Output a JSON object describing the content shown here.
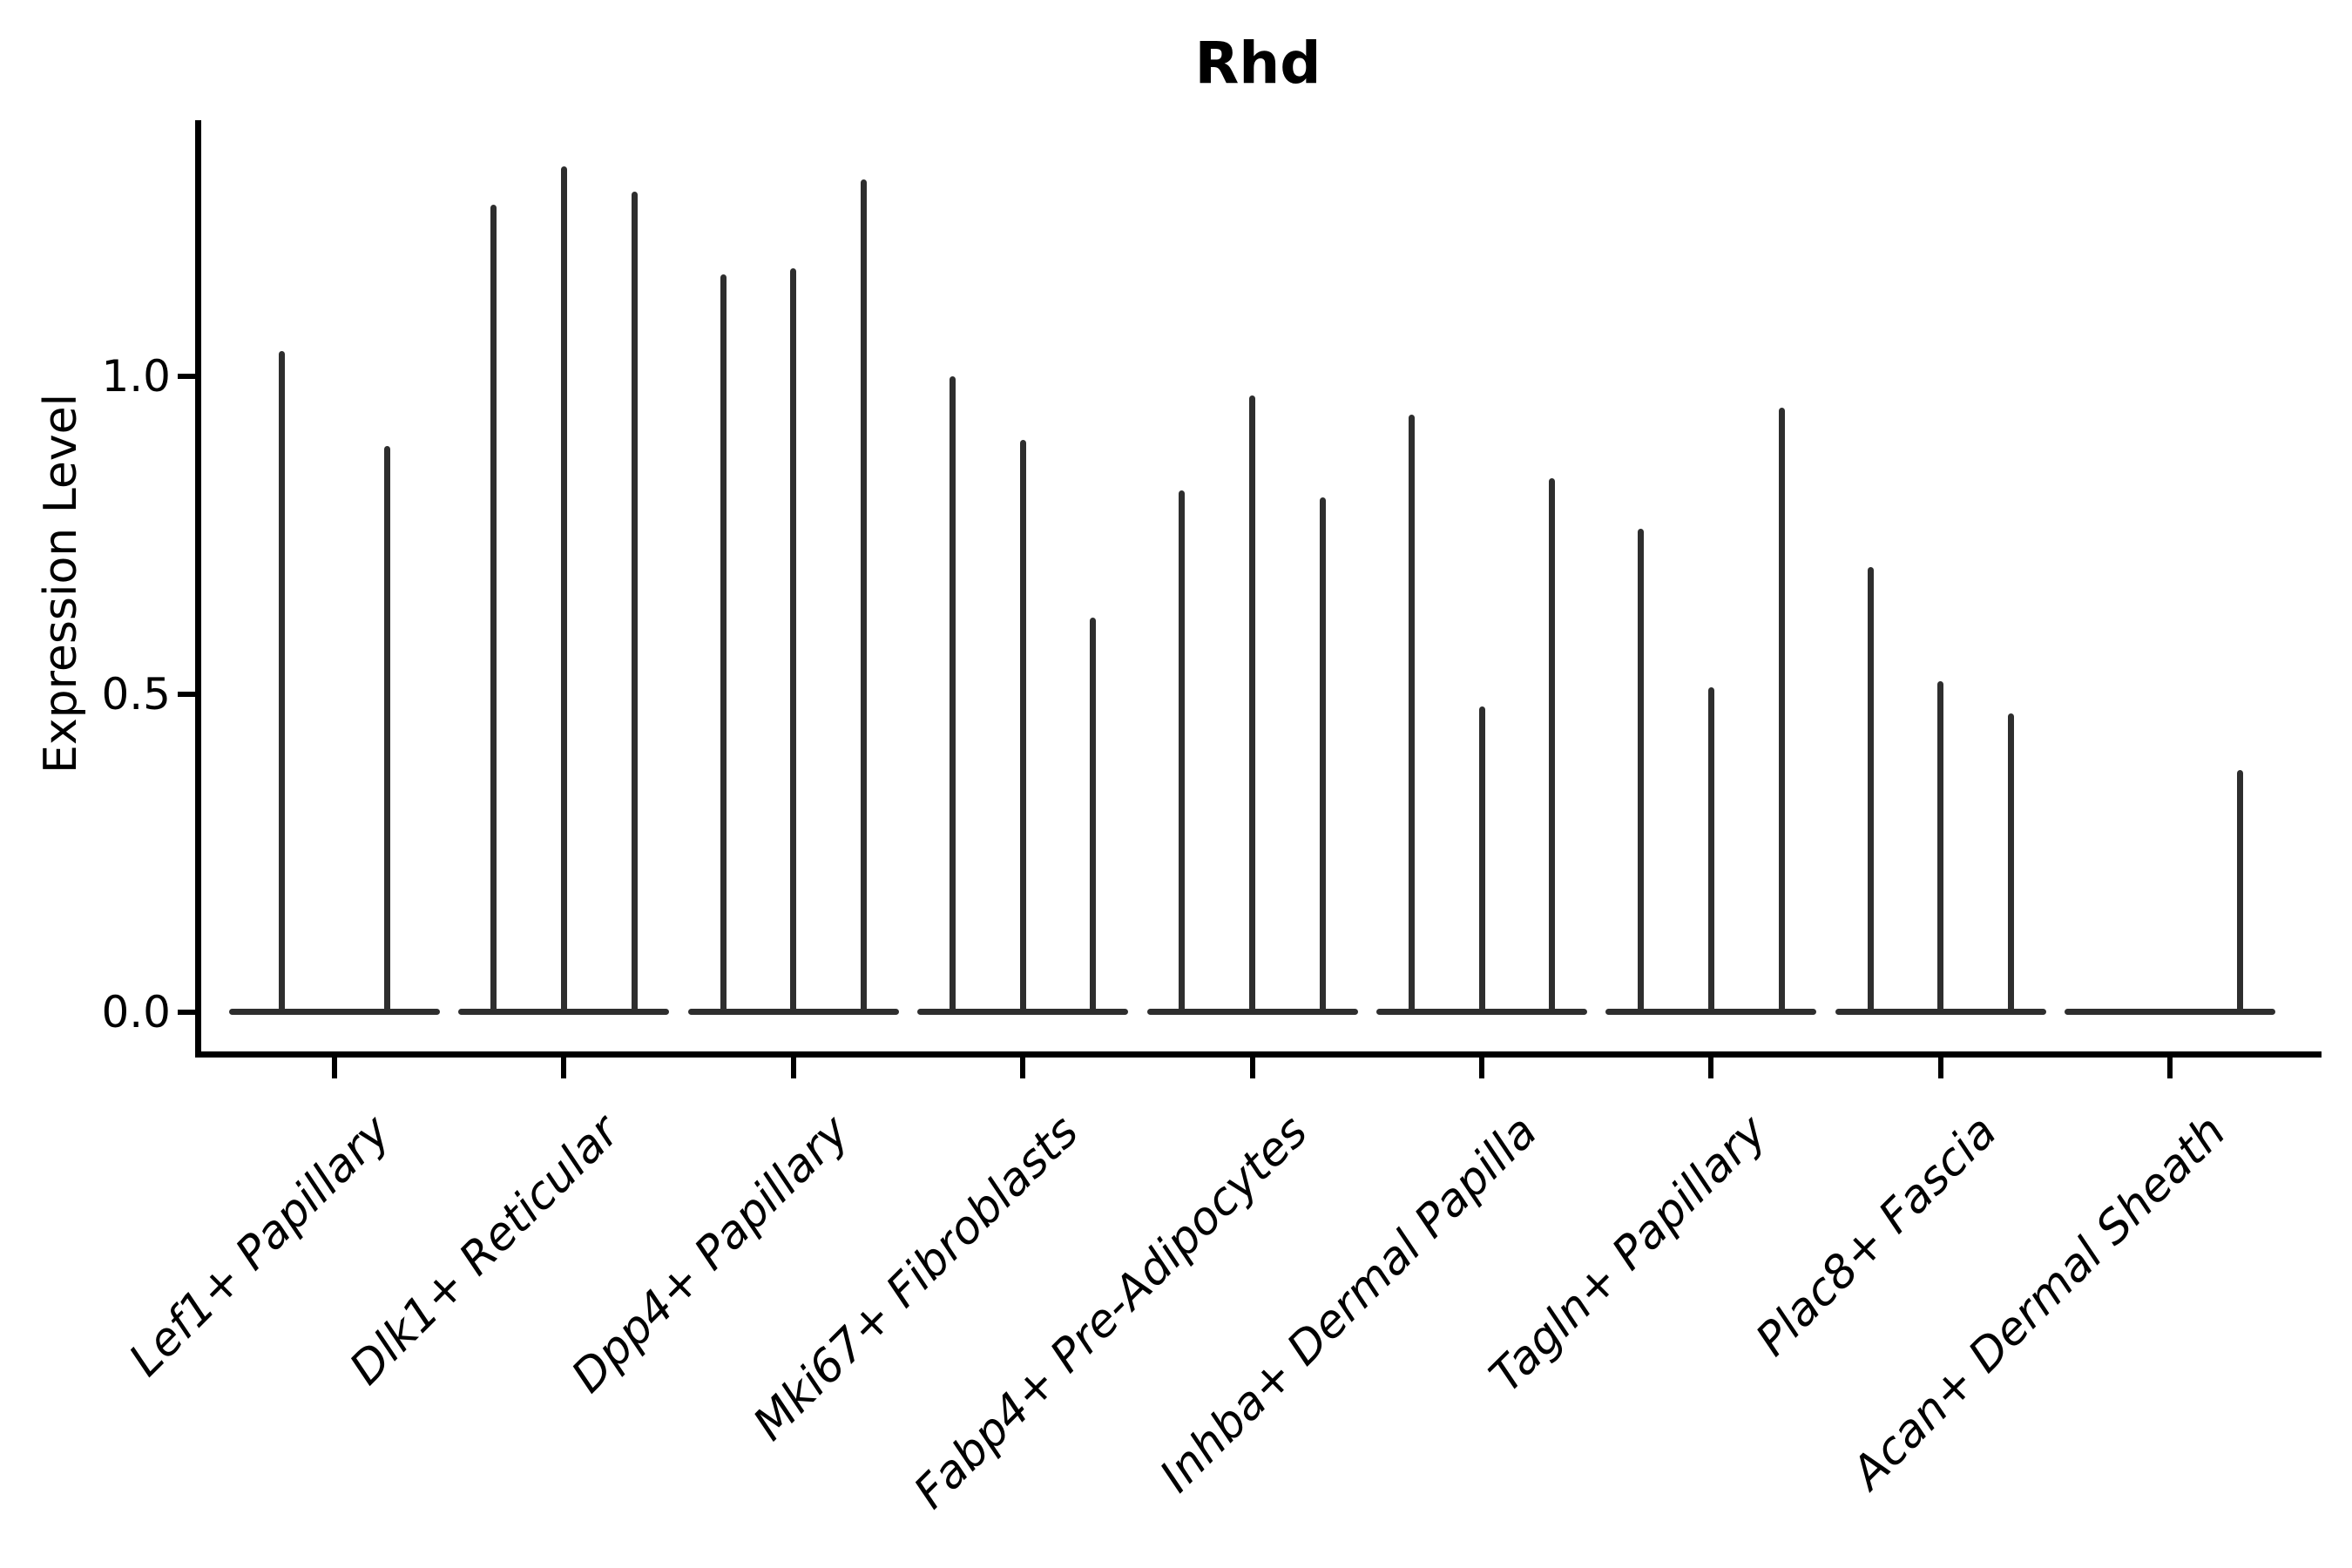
{
  "chart_data": {
    "type": "violin",
    "title": "Rhd",
    "xlabel": "",
    "ylabel": "Expression Level",
    "yticks": [
      {
        "label": "0.0",
        "value": 0.0
      },
      {
        "label": "0.5",
        "value": 0.5
      },
      {
        "label": "1.0",
        "value": 1.0
      }
    ],
    "ylim": [
      0.0,
      1.4
    ],
    "grid": false,
    "legend": "none",
    "description": "Violin plot of Rhd expression level per fibroblast cluster; each cluster contains multiple narrow violins (samples) whose mass is concentrated at 0 with a thin spike up to the maximum expression value.",
    "groups": [
      {
        "label": "Lef1+ Papillary",
        "violin_maxima": [
          1.04,
          0.89
        ]
      },
      {
        "label": "Dlk1+ Reticular",
        "violin_maxima": [
          1.27,
          1.33,
          1.29
        ]
      },
      {
        "label": "Dpp4+ Papillary",
        "violin_maxima": [
          1.16,
          1.17,
          1.31
        ]
      },
      {
        "label": "Mki67+ Fibroblasts",
        "violin_maxima": [
          1.0,
          0.9,
          0.62
        ]
      },
      {
        "label": "Fabp4+ Pre-Adipocytes",
        "violin_maxima": [
          0.82,
          0.97,
          0.81
        ]
      },
      {
        "label": "Inhba+ Dermal Papilla",
        "violin_maxima": [
          0.94,
          0.48,
          0.84
        ]
      },
      {
        "label": "Tagln+ Papillary",
        "violin_maxima": [
          0.76,
          0.51,
          0.95
        ]
      },
      {
        "label": "Plac8+ Fascia",
        "violin_maxima": [
          0.7,
          0.52,
          0.47
        ]
      },
      {
        "label": "Acan+ Dermal Sheath",
        "violin_maxima": [
          0.0,
          0.0,
          0.38
        ]
      }
    ],
    "colors": {
      "violin": "#2e2e2e",
      "axis": "#000000",
      "background": "#ffffff"
    }
  }
}
